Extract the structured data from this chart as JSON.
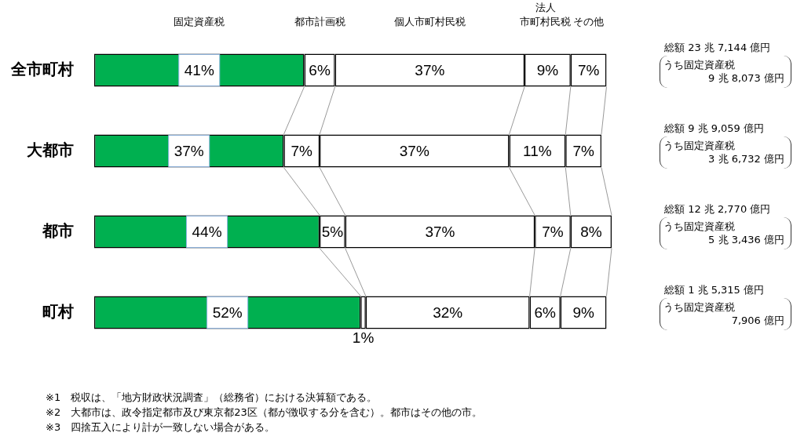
{
  "chart_data": {
    "type": "bar",
    "orientation": "horizontal",
    "stacked": true,
    "tick_labels": "y",
    "categories": [
      "全市町村",
      "大都市",
      "都市",
      "町村"
    ],
    "series": [
      {
        "name": "固定資産税",
        "color": "#00b050",
        "values": [
          41,
          37,
          44,
          52
        ],
        "value_labels": [
          "41%",
          "37%",
          "44%",
          "52%"
        ]
      },
      {
        "name": "都市計画税",
        "color": "#ffffff",
        "values": [
          6,
          7,
          5,
          1
        ],
        "value_labels": [
          "6%",
          "7%",
          "5%",
          "1%"
        ]
      },
      {
        "name": "個人市町村民税",
        "color": "#ffffff",
        "values": [
          37,
          37,
          37,
          32
        ],
        "value_labels": [
          "37%",
          "37%",
          "37%",
          "32%"
        ]
      },
      {
        "name": "法人市町村民税",
        "color": "#ffffff",
        "values": [
          9,
          11,
          7,
          6
        ],
        "value_labels": [
          "9%",
          "11%",
          "7%",
          "6%"
        ]
      },
      {
        "name": "その他",
        "color": "#ffffff",
        "values": [
          7,
          7,
          8,
          9
        ],
        "value_labels": [
          "7%",
          "7%",
          "8%",
          "9%"
        ]
      }
    ],
    "annotations": [
      "総額 23 兆 7,144 億円",
      "うち固定資産税",
      "9 兆 8,073 億円",
      "総額 9 兆 9,059 億円",
      "うち固定資産税",
      "3 兆 6,732 億円",
      "総額 12 兆 2,770 億円",
      "うち固定資産税",
      "5 兆 3,436 億円",
      "総額 1 兆 5,315 億円",
      "うち固定資産税",
      "7,906 億円",
      "※1　税収は、「地方財政状況調査」（総務省）における決算額である。",
      "※2　大都市は、政令指定都市及び東京都23区（都が徴収する分を含む）。都市はその他の市。",
      "※3　四捨五入により計が一致しない場合がある。"
    ]
  }
}
